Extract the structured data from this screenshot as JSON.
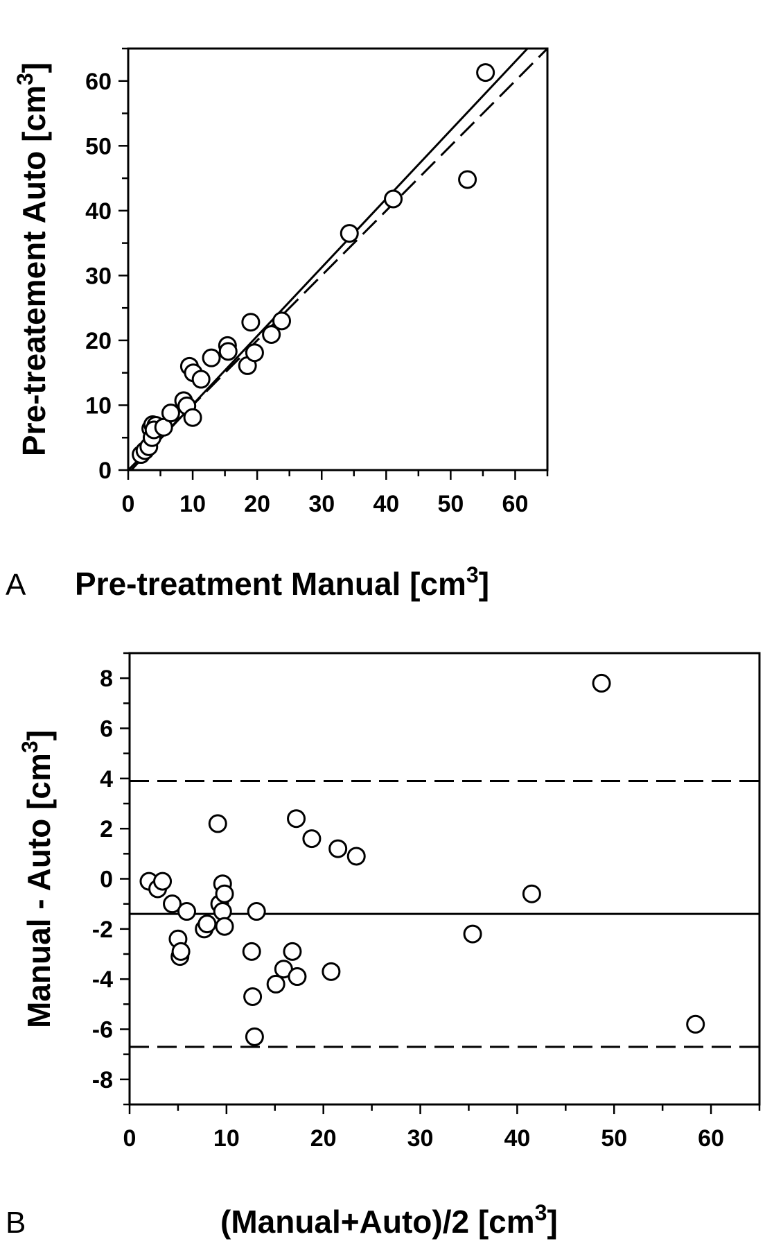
{
  "chart_data": [
    {
      "panel": "A",
      "type": "scatter",
      "xlabel": "Pre-treatment Manual [cm",
      "ylabel": "Pre-treatement Auto [cm",
      "unit_superscript": "3",
      "xlim": [
        0,
        65
      ],
      "ylim": [
        0,
        65
      ],
      "x_ticks": [
        0,
        10,
        20,
        30,
        40,
        50,
        60
      ],
      "y_ticks": [
        0,
        10,
        20,
        30,
        40,
        50,
        60
      ],
      "grid": false,
      "series": [
        {
          "points": [
            [
              2.0,
              2.4
            ],
            [
              2.6,
              3.0
            ],
            [
              3.2,
              3.6
            ],
            [
              3.5,
              6.4
            ],
            [
              3.8,
              7.0
            ],
            [
              4.3,
              6.9
            ],
            [
              3.7,
              5.0
            ],
            [
              4.0,
              6.2
            ],
            [
              5.5,
              6.6
            ],
            [
              6.6,
              8.8
            ],
            [
              8.6,
              10.7
            ],
            [
              9.1,
              9.9
            ],
            [
              10.0,
              8.1
            ],
            [
              9.5,
              16.0
            ],
            [
              10.1,
              15.0
            ],
            [
              11.3,
              14.0
            ],
            [
              12.9,
              17.3
            ],
            [
              15.4,
              19.2
            ],
            [
              15.5,
              18.3
            ],
            [
              18.5,
              16.1
            ],
            [
              19.0,
              22.8
            ],
            [
              19.6,
              18.1
            ],
            [
              22.2,
              20.9
            ],
            [
              23.8,
              23.0
            ],
            [
              34.3,
              36.5
            ],
            [
              41.1,
              41.8
            ],
            [
              52.6,
              44.8
            ],
            [
              55.4,
              61.3
            ]
          ]
        }
      ],
      "lines": [
        {
          "style": "solid",
          "slope": 1.058,
          "intercept": -0.5
        },
        {
          "style": "dashed",
          "slope": 1.0,
          "intercept": 0
        }
      ]
    },
    {
      "panel": "B",
      "type": "scatter",
      "xlabel": "(Manual+Auto)/2 [cm",
      "ylabel": "Manual - Auto [cm",
      "unit_superscript": "3",
      "xlim": [
        0,
        65
      ],
      "ylim": [
        -9,
        9
      ],
      "x_ticks": [
        0,
        10,
        20,
        30,
        40,
        50,
        60
      ],
      "y_ticks": [
        -8,
        -6,
        -4,
        -2,
        0,
        2,
        4,
        6,
        8
      ],
      "grid": false,
      "series": [
        {
          "points": [
            [
              2.0,
              -0.1
            ],
            [
              2.9,
              -0.4
            ],
            [
              3.4,
              -0.1
            ],
            [
              4.4,
              -1.0
            ],
            [
              5.0,
              -2.4
            ],
            [
              5.2,
              -3.1
            ],
            [
              5.3,
              -2.9
            ],
            [
              5.9,
              -1.3
            ],
            [
              7.7,
              -2.0
            ],
            [
              8.0,
              -1.8
            ],
            [
              9.1,
              2.2
            ],
            [
              9.3,
              -1.0
            ],
            [
              9.6,
              -0.2
            ],
            [
              9.6,
              -1.3
            ],
            [
              9.8,
              -0.6
            ],
            [
              9.8,
              -1.9
            ],
            [
              12.6,
              -2.9
            ],
            [
              12.7,
              -4.7
            ],
            [
              12.9,
              -6.3
            ],
            [
              13.1,
              -1.3
            ],
            [
              15.1,
              -4.2
            ],
            [
              15.9,
              -3.6
            ],
            [
              16.8,
              -2.9
            ],
            [
              17.2,
              2.4
            ],
            [
              17.3,
              -3.9
            ],
            [
              18.8,
              1.6
            ],
            [
              20.8,
              -3.7
            ],
            [
              21.5,
              1.2
            ],
            [
              23.4,
              0.9
            ],
            [
              35.4,
              -2.2
            ],
            [
              41.5,
              -0.6
            ],
            [
              48.7,
              7.8
            ],
            [
              58.4,
              -5.8
            ]
          ]
        }
      ],
      "hlines": [
        {
          "style": "solid",
          "y": -1.4,
          "label": ""
        },
        {
          "style": "dashed",
          "y": 3.9,
          "label": ""
        },
        {
          "style": "dashed",
          "y": -6.7,
          "label": ""
        }
      ]
    }
  ]
}
